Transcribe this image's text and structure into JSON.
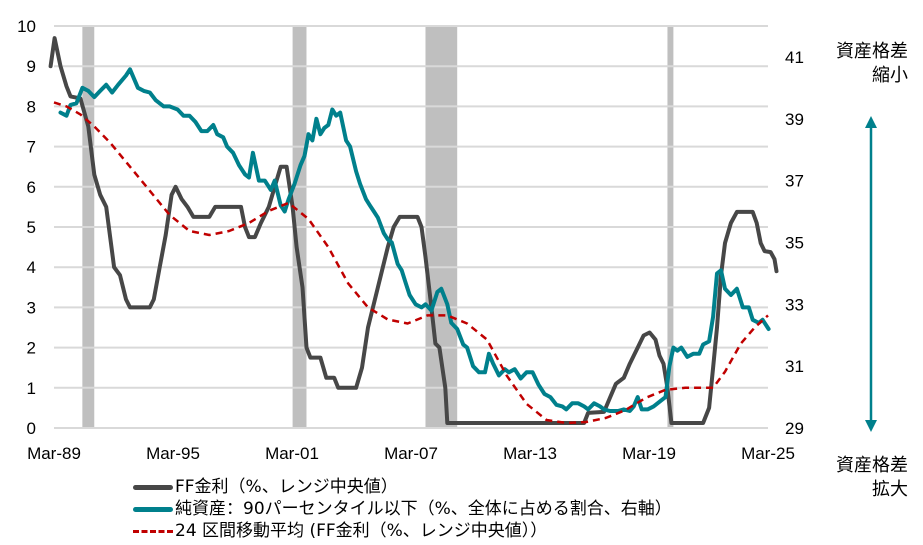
{
  "chart_data": {
    "type": "line",
    "title": "",
    "xlabel": "",
    "ylabel": "",
    "x_tick_labels": [
      "Mar-89",
      "Mar-95",
      "Mar-01",
      "Mar-07",
      "Mar-13",
      "Mar-19",
      "Mar-25"
    ],
    "x_range": [
      1989.17,
      2025.17
    ],
    "left_axis": {
      "ticks": [
        0,
        1,
        2,
        3,
        4,
        5,
        6,
        7,
        8,
        9,
        10
      ],
      "ylim": [
        0,
        10
      ]
    },
    "right_axis": {
      "ticks": [
        29,
        31,
        33,
        35,
        37,
        39,
        41
      ],
      "ylim": [
        29,
        42
      ]
    },
    "grid": true,
    "legend_position": "bottom",
    "recessions": [
      [
        1990.6,
        1991.2
      ],
      [
        2001.2,
        2001.9
      ],
      [
        2007.9,
        2009.5
      ],
      [
        2020.1,
        2020.4
      ]
    ],
    "series": [
      {
        "name": "FF金利（%、レンジ中央値）",
        "axis": "left",
        "color": "#474747",
        "style": "solid",
        "points": [
          [
            1989.0,
            9.0
          ],
          [
            1989.2,
            9.7
          ],
          [
            1989.5,
            9.0
          ],
          [
            1989.8,
            8.5
          ],
          [
            1990.0,
            8.25
          ],
          [
            1990.5,
            8.2
          ],
          [
            1990.9,
            7.5
          ],
          [
            1991.2,
            6.3
          ],
          [
            1991.5,
            5.8
          ],
          [
            1991.8,
            5.5
          ],
          [
            1992.2,
            4.0
          ],
          [
            1992.5,
            3.8
          ],
          [
            1992.8,
            3.2
          ],
          [
            1993.0,
            3.0
          ],
          [
            1994.0,
            3.0
          ],
          [
            1994.2,
            3.2
          ],
          [
            1994.5,
            4.0
          ],
          [
            1994.8,
            4.8
          ],
          [
            1995.1,
            5.8
          ],
          [
            1995.3,
            6.0
          ],
          [
            1995.6,
            5.7
          ],
          [
            1995.9,
            5.5
          ],
          [
            1996.2,
            5.25
          ],
          [
            1997.0,
            5.25
          ],
          [
            1997.3,
            5.5
          ],
          [
            1998.6,
            5.5
          ],
          [
            1998.8,
            5.0
          ],
          [
            1999.0,
            4.75
          ],
          [
            1999.3,
            4.75
          ],
          [
            1999.6,
            5.1
          ],
          [
            2000.0,
            5.5
          ],
          [
            2000.3,
            6.0
          ],
          [
            2000.6,
            6.5
          ],
          [
            2000.9,
            6.5
          ],
          [
            2001.2,
            5.5
          ],
          [
            2001.4,
            4.5
          ],
          [
            2001.7,
            3.5
          ],
          [
            2001.9,
            2.0
          ],
          [
            2002.1,
            1.75
          ],
          [
            2002.6,
            1.75
          ],
          [
            2002.9,
            1.25
          ],
          [
            2003.3,
            1.25
          ],
          [
            2003.5,
            1.0
          ],
          [
            2004.4,
            1.0
          ],
          [
            2004.7,
            1.5
          ],
          [
            2005.0,
            2.5
          ],
          [
            2005.5,
            3.5
          ],
          [
            2006.0,
            4.5
          ],
          [
            2006.3,
            5.0
          ],
          [
            2006.6,
            5.25
          ],
          [
            2007.5,
            5.25
          ],
          [
            2007.7,
            5.0
          ],
          [
            2007.9,
            4.25
          ],
          [
            2008.2,
            3.0
          ],
          [
            2008.4,
            2.1
          ],
          [
            2008.6,
            2.0
          ],
          [
            2008.9,
            1.0
          ],
          [
            2009.0,
            0.125
          ],
          [
            2015.9,
            0.125
          ],
          [
            2016.1,
            0.375
          ],
          [
            2016.9,
            0.4
          ],
          [
            2017.2,
            0.75
          ],
          [
            2017.5,
            1.1
          ],
          [
            2017.9,
            1.25
          ],
          [
            2018.2,
            1.6
          ],
          [
            2018.6,
            2.0
          ],
          [
            2018.9,
            2.3
          ],
          [
            2019.2,
            2.375
          ],
          [
            2019.5,
            2.2
          ],
          [
            2019.7,
            1.8
          ],
          [
            2019.9,
            1.6
          ],
          [
            2020.1,
            1.0
          ],
          [
            2020.3,
            0.125
          ],
          [
            2021.9,
            0.125
          ],
          [
            2022.2,
            0.5
          ],
          [
            2022.4,
            1.5
          ],
          [
            2022.6,
            2.5
          ],
          [
            2022.8,
            3.8
          ],
          [
            2023.0,
            4.6
          ],
          [
            2023.3,
            5.1
          ],
          [
            2023.6,
            5.375
          ],
          [
            2024.4,
            5.375
          ],
          [
            2024.6,
            5.1
          ],
          [
            2024.8,
            4.6
          ],
          [
            2025.0,
            4.4
          ],
          [
            2025.3,
            4.375
          ],
          [
            2025.5,
            4.2
          ],
          [
            2025.6,
            3.9
          ]
        ]
      },
      {
        "name": "純資産：90パーセンタイル以下（%、全体に占める割合、右軸）",
        "axis": "right",
        "color": "#00808c",
        "style": "solid",
        "points": [
          [
            1989.5,
            39.2
          ],
          [
            1989.8,
            39.1
          ],
          [
            1990.0,
            39.45
          ],
          [
            1990.3,
            39.5
          ],
          [
            1990.6,
            40.0
          ],
          [
            1990.9,
            39.9
          ],
          [
            1991.2,
            39.7
          ],
          [
            1991.5,
            39.9
          ],
          [
            1991.8,
            40.1
          ],
          [
            1992.1,
            39.85
          ],
          [
            1992.4,
            40.1
          ],
          [
            1992.8,
            40.4
          ],
          [
            1993.0,
            40.6
          ],
          [
            1993.4,
            40.0
          ],
          [
            1993.7,
            39.9
          ],
          [
            1994.0,
            39.85
          ],
          [
            1994.3,
            39.6
          ],
          [
            1994.7,
            39.4
          ],
          [
            1995.0,
            39.4
          ],
          [
            1995.4,
            39.3
          ],
          [
            1995.7,
            39.1
          ],
          [
            1996.0,
            39.1
          ],
          [
            1996.3,
            38.9
          ],
          [
            1996.6,
            38.6
          ],
          [
            1996.9,
            38.6
          ],
          [
            1997.2,
            38.8
          ],
          [
            1997.4,
            38.5
          ],
          [
            1997.7,
            38.4
          ],
          [
            1997.9,
            38.1
          ],
          [
            1998.2,
            37.9
          ],
          [
            1998.5,
            37.5
          ],
          [
            1998.8,
            37.2
          ],
          [
            1999.0,
            37.1
          ],
          [
            1999.2,
            37.9
          ],
          [
            1999.5,
            37.0
          ],
          [
            1999.8,
            37.0
          ],
          [
            2000.1,
            36.7
          ],
          [
            2000.3,
            37.0
          ],
          [
            2000.6,
            36.2
          ],
          [
            2000.8,
            36.0
          ],
          [
            2001.0,
            36.4
          ],
          [
            2001.3,
            36.9
          ],
          [
            2001.6,
            37.5
          ],
          [
            2001.8,
            37.8
          ],
          [
            2002.0,
            38.5
          ],
          [
            2002.2,
            38.3
          ],
          [
            2002.4,
            39.0
          ],
          [
            2002.6,
            38.5
          ],
          [
            2002.8,
            38.7
          ],
          [
            2003.0,
            38.8
          ],
          [
            2003.2,
            39.3
          ],
          [
            2003.4,
            39.1
          ],
          [
            2003.6,
            39.2
          ],
          [
            2003.9,
            38.3
          ],
          [
            2004.1,
            38.1
          ],
          [
            2004.4,
            37.3
          ],
          [
            2004.6,
            36.9
          ],
          [
            2004.9,
            36.4
          ],
          [
            2005.1,
            36.2
          ],
          [
            2005.3,
            36.0
          ],
          [
            2005.5,
            35.8
          ],
          [
            2005.8,
            35.3
          ],
          [
            2006.0,
            35.1
          ],
          [
            2006.2,
            35.0
          ],
          [
            2006.5,
            34.3
          ],
          [
            2006.7,
            34.1
          ],
          [
            2006.9,
            33.7
          ],
          [
            2007.1,
            33.3
          ],
          [
            2007.4,
            33.0
          ],
          [
            2007.7,
            32.9
          ],
          [
            2007.9,
            33.0
          ],
          [
            2008.2,
            32.8
          ],
          [
            2008.5,
            33.4
          ],
          [
            2008.7,
            33.5
          ],
          [
            2009.0,
            33.0
          ],
          [
            2009.2,
            32.4
          ],
          [
            2009.5,
            32.2
          ],
          [
            2009.8,
            31.7
          ],
          [
            2010.0,
            31.6
          ],
          [
            2010.3,
            31.0
          ],
          [
            2010.6,
            30.8
          ],
          [
            2010.9,
            30.8
          ],
          [
            2011.1,
            31.4
          ],
          [
            2011.3,
            31.1
          ],
          [
            2011.6,
            30.7
          ],
          [
            2011.9,
            30.9
          ],
          [
            2012.1,
            30.8
          ],
          [
            2012.4,
            30.9
          ],
          [
            2012.7,
            30.6
          ],
          [
            2013.0,
            30.8
          ],
          [
            2013.3,
            30.8
          ],
          [
            2013.6,
            30.4
          ],
          [
            2013.9,
            30.1
          ],
          [
            2014.2,
            30.0
          ],
          [
            2014.5,
            29.75
          ],
          [
            2014.8,
            29.7
          ],
          [
            2015.0,
            29.6
          ],
          [
            2015.3,
            29.8
          ],
          [
            2015.6,
            29.8
          ],
          [
            2015.9,
            29.7
          ],
          [
            2016.1,
            29.6
          ],
          [
            2016.4,
            29.8
          ],
          [
            2016.7,
            29.7
          ],
          [
            2016.9,
            29.6
          ],
          [
            2017.2,
            29.55
          ],
          [
            2017.6,
            29.55
          ],
          [
            2017.9,
            29.6
          ],
          [
            2018.2,
            29.55
          ],
          [
            2018.4,
            29.7
          ],
          [
            2018.6,
            30.0
          ],
          [
            2018.8,
            29.6
          ],
          [
            2019.1,
            29.6
          ],
          [
            2019.4,
            29.7
          ],
          [
            2019.8,
            29.9
          ],
          [
            2020.0,
            30.0
          ],
          [
            2020.2,
            31.0
          ],
          [
            2020.4,
            31.6
          ],
          [
            2020.6,
            31.5
          ],
          [
            2020.8,
            31.6
          ],
          [
            2021.1,
            31.3
          ],
          [
            2021.4,
            31.4
          ],
          [
            2021.7,
            31.4
          ],
          [
            2021.9,
            31.7
          ],
          [
            2022.2,
            31.8
          ],
          [
            2022.4,
            32.6
          ],
          [
            2022.6,
            34.0
          ],
          [
            2022.8,
            34.1
          ],
          [
            2023.0,
            33.5
          ],
          [
            2023.3,
            33.3
          ],
          [
            2023.6,
            33.5
          ],
          [
            2023.9,
            32.9
          ],
          [
            2024.2,
            32.9
          ],
          [
            2024.4,
            32.5
          ],
          [
            2024.7,
            32.4
          ],
          [
            2024.9,
            32.5
          ],
          [
            2025.2,
            32.2
          ]
        ]
      },
      {
        "name": "24 区間移動平均 (FF金利（%、レンジ中央値）)",
        "axis": "left",
        "color": "#c00000",
        "style": "dashed",
        "points": [
          [
            1989.17,
            8.1
          ],
          [
            1989.8,
            8.0
          ],
          [
            1990.5,
            7.8
          ],
          [
            1991.2,
            7.5
          ],
          [
            1992.0,
            7.1
          ],
          [
            1993.0,
            6.5
          ],
          [
            1994.0,
            5.9
          ],
          [
            1995.0,
            5.3
          ],
          [
            1996.0,
            4.9
          ],
          [
            1997.0,
            4.8
          ],
          [
            1998.0,
            4.9
          ],
          [
            1999.0,
            5.1
          ],
          [
            2000.0,
            5.4
          ],
          [
            2001.0,
            5.6
          ],
          [
            2002.0,
            5.2
          ],
          [
            2003.0,
            4.5
          ],
          [
            2004.0,
            3.6
          ],
          [
            2005.0,
            3.0
          ],
          [
            2006.0,
            2.7
          ],
          [
            2007.0,
            2.6
          ],
          [
            2008.0,
            2.8
          ],
          [
            2009.0,
            2.8
          ],
          [
            2010.0,
            2.6
          ],
          [
            2011.0,
            2.2
          ],
          [
            2012.0,
            1.3
          ],
          [
            2013.0,
            0.6
          ],
          [
            2014.0,
            0.2
          ],
          [
            2015.0,
            0.125
          ],
          [
            2016.0,
            0.15
          ],
          [
            2017.0,
            0.25
          ],
          [
            2018.0,
            0.45
          ],
          [
            2019.0,
            0.75
          ],
          [
            2020.0,
            0.95
          ],
          [
            2021.0,
            1.0
          ],
          [
            2022.4,
            1.0
          ],
          [
            2023.0,
            1.4
          ],
          [
            2023.8,
            2.1
          ],
          [
            2024.5,
            2.5
          ],
          [
            2025.17,
            2.8
          ]
        ]
      }
    ]
  },
  "annotations": {
    "top_line1": "資産格差",
    "top_line2": "縮小",
    "bottom_line1": "資産格差",
    "bottom_line2": "拡大"
  },
  "legend": {
    "ff_rate": "FF金利（%、レンジ中央値）",
    "net_worth": "純資産：90パーセンタイル以下（%、全体に占める割合、右軸）",
    "moving_avg": "24 区間移動平均 (FF金利（%、レンジ中央値））"
  },
  "colors": {
    "ff_rate": "#474747",
    "net_worth": "#00808c",
    "moving_avg": "#c00000",
    "recession": "#bfbfbf",
    "grid": "#d9d9d9"
  }
}
